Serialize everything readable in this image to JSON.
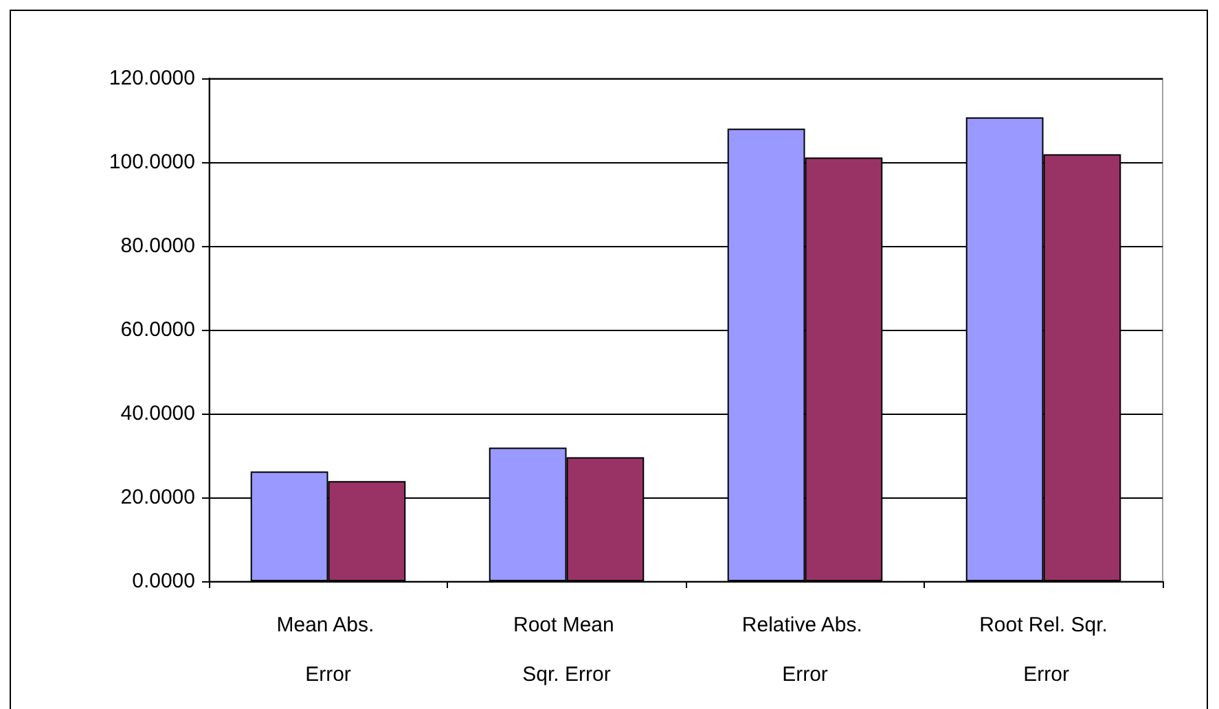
{
  "chart_data": {
    "type": "bar",
    "categories": [
      "Mean Abs. Error",
      "Root Mean Sqr. Error",
      "Relative Abs. Error",
      "Root Rel. Sqr. Error"
    ],
    "series": [
      {
        "color": "#9999ff",
        "values": [
          26.2,
          31.9,
          108.0,
          110.7
        ]
      },
      {
        "color": "#993366",
        "values": [
          23.9,
          29.6,
          101.1,
          101.9
        ]
      }
    ],
    "ylim": [
      0,
      120
    ],
    "yticks": [
      {
        "value": 0,
        "label": "0.0000"
      },
      {
        "value": 20,
        "label": "20.0000"
      },
      {
        "value": 40,
        "label": "40.0000"
      },
      {
        "value": 60,
        "label": "60.0000"
      },
      {
        "value": 80,
        "label": "80.0000"
      },
      {
        "value": 100,
        "label": "100.0000"
      },
      {
        "value": 120,
        "label": "120.0000"
      }
    ],
    "grid": "y"
  }
}
